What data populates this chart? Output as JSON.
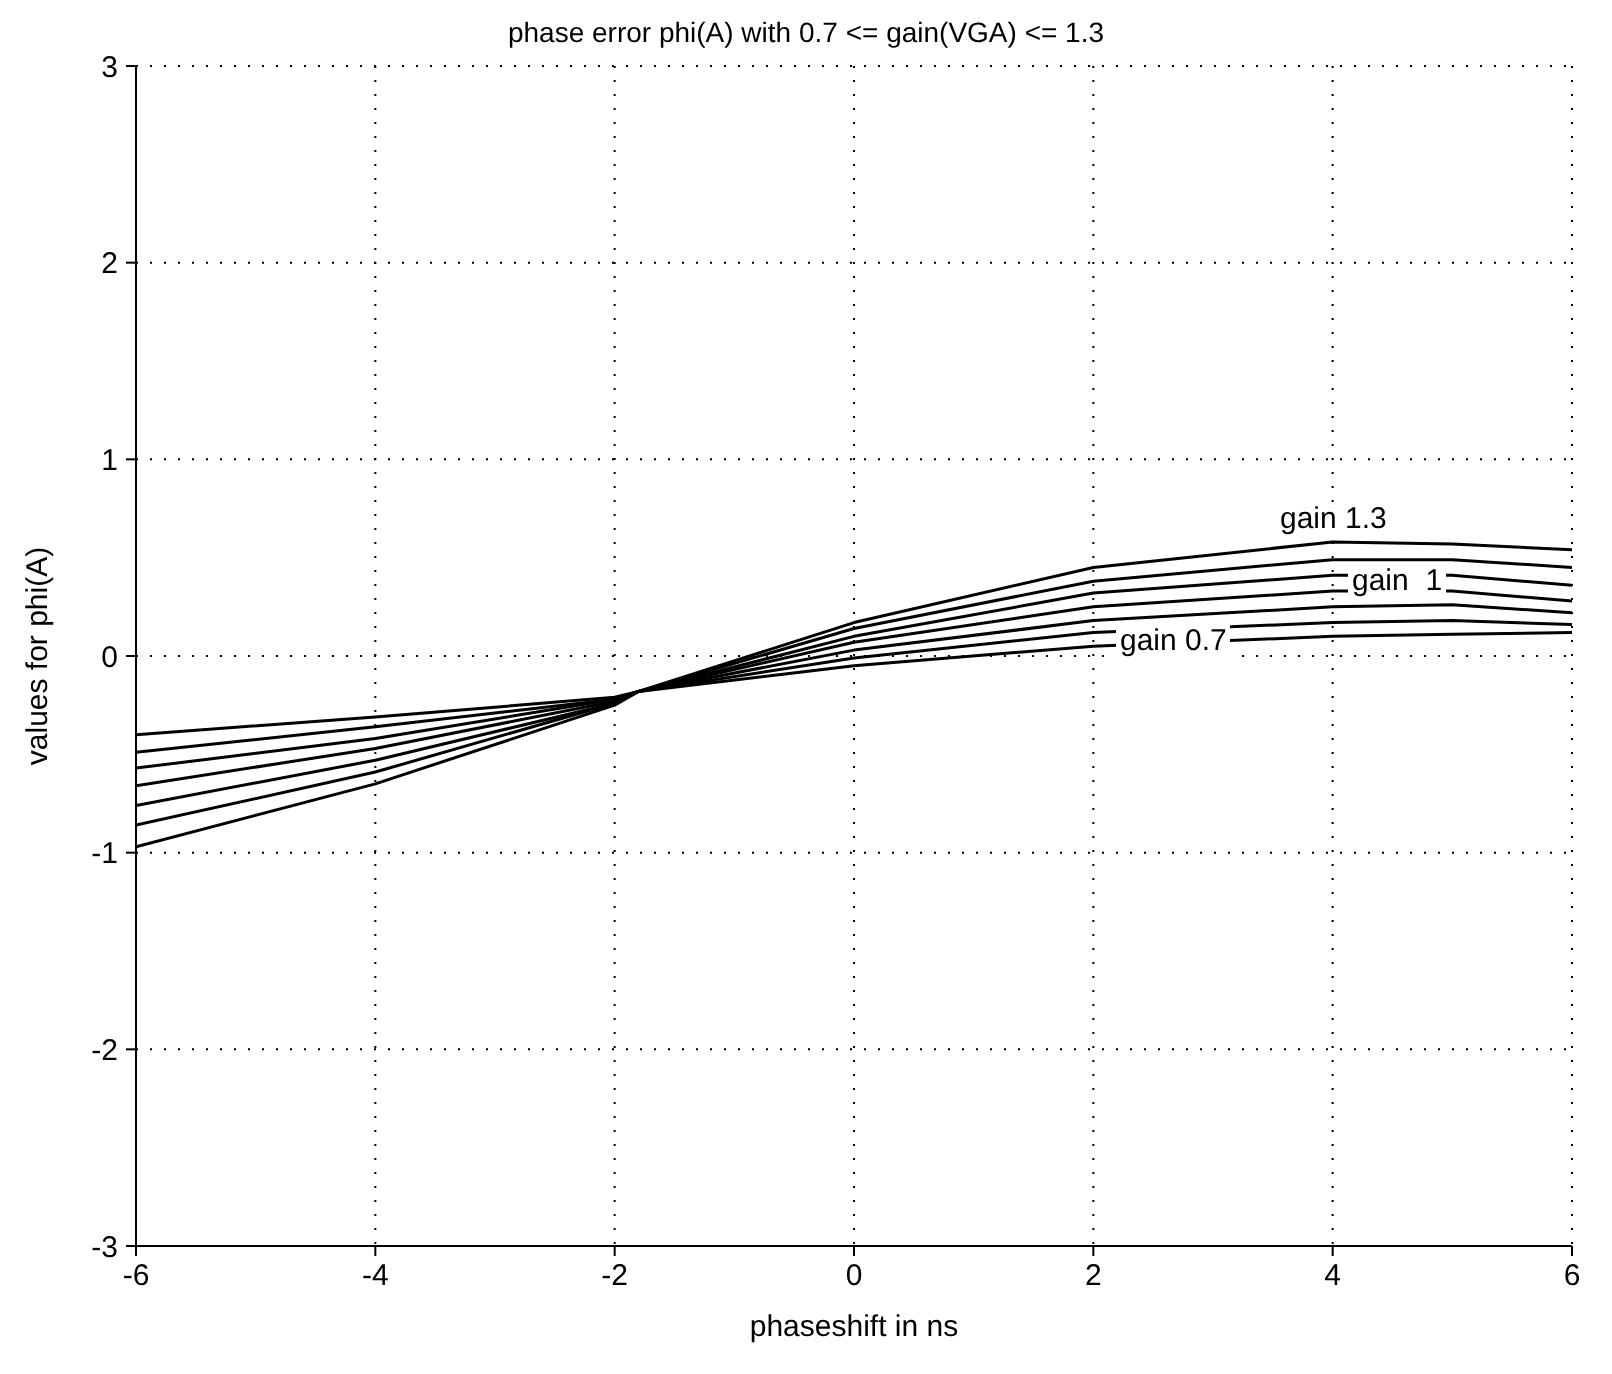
{
  "chart_data": {
    "type": "line",
    "title": "phase error phi(A) with  0.7 <= gain(VGA) <= 1.3",
    "xlabel": "phaseshift in ns",
    "ylabel": "values for phi(A)",
    "x": [
      -6,
      -4,
      -2,
      -1.8,
      0,
      2,
      4,
      5,
      6
    ],
    "series": [
      {
        "color": "#000000",
        "values": [
          -0.4,
          -0.31,
          -0.21,
          -0.18,
          -0.05,
          0.05,
          0.1,
          0.11,
          0.12
        ]
      },
      {
        "color": "#000000",
        "values": [
          -0.49,
          -0.36,
          -0.22,
          -0.18,
          -0.01,
          0.12,
          0.17,
          0.18,
          0.16
        ]
      },
      {
        "color": "#000000",
        "values": [
          -0.57,
          -0.42,
          -0.22,
          -0.18,
          0.03,
          0.18,
          0.25,
          0.26,
          0.22
        ]
      },
      {
        "color": "#000000",
        "values": [
          -0.66,
          -0.47,
          -0.23,
          -0.18,
          0.07,
          0.25,
          0.33,
          0.33,
          0.28
        ]
      },
      {
        "color": "#000000",
        "values": [
          -0.76,
          -0.53,
          -0.24,
          -0.18,
          0.1,
          0.32,
          0.41,
          0.41,
          0.36
        ]
      },
      {
        "color": "#000000",
        "values": [
          -0.86,
          -0.59,
          -0.24,
          -0.18,
          0.14,
          0.38,
          0.49,
          0.49,
          0.45
        ]
      },
      {
        "color": "#000000",
        "values": [
          -0.97,
          -0.65,
          -0.25,
          -0.18,
          0.17,
          0.45,
          0.58,
          0.57,
          0.54
        ]
      }
    ],
    "annotations": [
      "gain 1.3",
      "gain  1",
      "gain 0.7"
    ],
    "xlim": [
      -6,
      6
    ],
    "ylim": [
      -3,
      3
    ],
    "xticks": [
      -6,
      -4,
      -2,
      0,
      2,
      4,
      6
    ],
    "yticks": [
      -3,
      -2,
      -1,
      0,
      1,
      2,
      3
    ],
    "grid": true,
    "line_style": "solid",
    "marker": "none"
  }
}
